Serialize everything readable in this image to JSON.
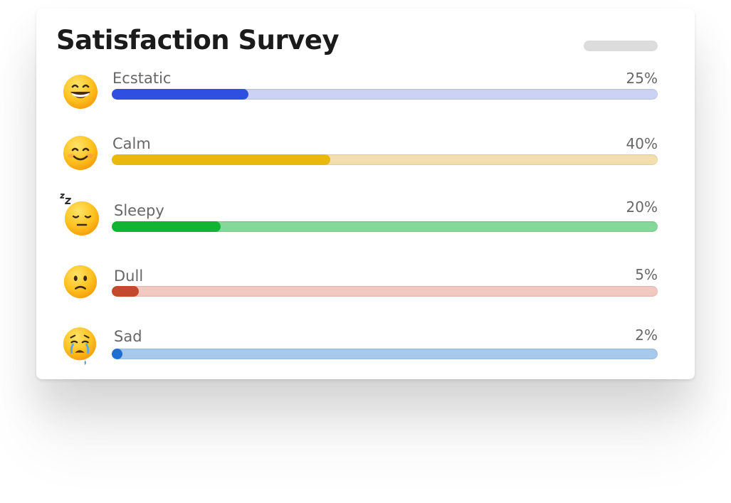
{
  "card": {
    "title": "Satisfaction Survey"
  },
  "chart_data": {
    "type": "bar",
    "orientation": "horizontal",
    "title": "Satisfaction Survey",
    "categories": [
      "Ecstatic",
      "Calm",
      "Sleepy",
      "Dull",
      "Sad"
    ],
    "values": [
      25,
      40,
      20,
      5,
      2
    ],
    "labels": [
      "25%",
      "40%",
      "20%",
      "5%",
      "2%"
    ],
    "unit": "%",
    "xlim": [
      0,
      100
    ],
    "grid": false,
    "legend": "none"
  },
  "rows": [
    {
      "label": "Ecstatic",
      "value_text": "25%",
      "value": 25,
      "icon": "grinning-face-icon",
      "fill_color": "#2f4fe0",
      "track_color": "#cbd2f4"
    },
    {
      "label": "Calm",
      "value_text": "40%",
      "value": 40,
      "icon": "smiling-face-icon",
      "fill_color": "#e8b90c",
      "track_color": "#f2dfad"
    },
    {
      "label": "Sleepy",
      "value_text": "20%",
      "value": 20,
      "icon": "sleeping-face-icon",
      "fill_color": "#11b531",
      "track_color": "#86d89a"
    },
    {
      "label": "Dull",
      "value_text": "5%",
      "value": 5,
      "icon": "slightly-frowning-face-icon",
      "fill_color": "#c44a2e",
      "track_color": "#f1c9c0"
    },
    {
      "label": "Sad",
      "value_text": "2%",
      "value": 2,
      "icon": "crying-face-icon",
      "fill_color": "#1f6fd2",
      "track_color": "#a6c9ec"
    }
  ]
}
